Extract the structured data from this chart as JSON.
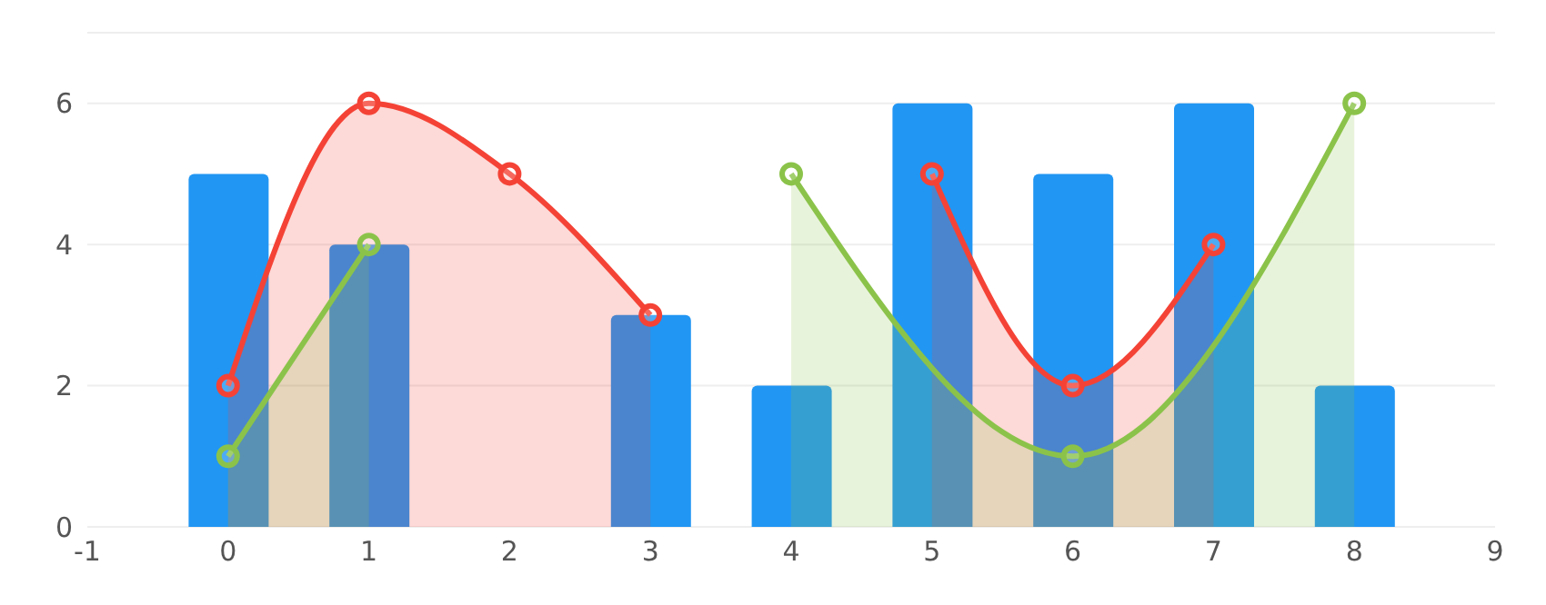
{
  "chart_data": {
    "type": "bar",
    "xlim": [
      -1,
      9
    ],
    "xticks": [
      -1,
      0,
      1,
      2,
      3,
      4,
      5,
      6,
      7,
      8,
      9
    ],
    "ylim": [
      0,
      7
    ],
    "yticks": [
      0,
      2,
      4,
      6
    ],
    "grid": "y",
    "marker": "circle",
    "series": [
      {
        "color": "#2196f3",
        "x": [
          0,
          1,
          2,
          3,
          4,
          5,
          6,
          7,
          8
        ],
        "values": [
          5,
          4,
          null,
          3,
          2,
          6,
          5,
          6,
          2
        ]
      },
      {
        "type": "area",
        "color": "#f44336",
        "x": [
          0,
          1,
          2,
          3,
          4,
          5,
          6,
          7
        ],
        "values": [
          2,
          6,
          5,
          3,
          null,
          5,
          2,
          4
        ]
      },
      {
        "type": "area",
        "color": "#8bc34a",
        "x": [
          0,
          1,
          2,
          4,
          6,
          8
        ],
        "values": [
          1,
          4,
          null,
          5,
          1,
          6
        ]
      }
    ]
  }
}
